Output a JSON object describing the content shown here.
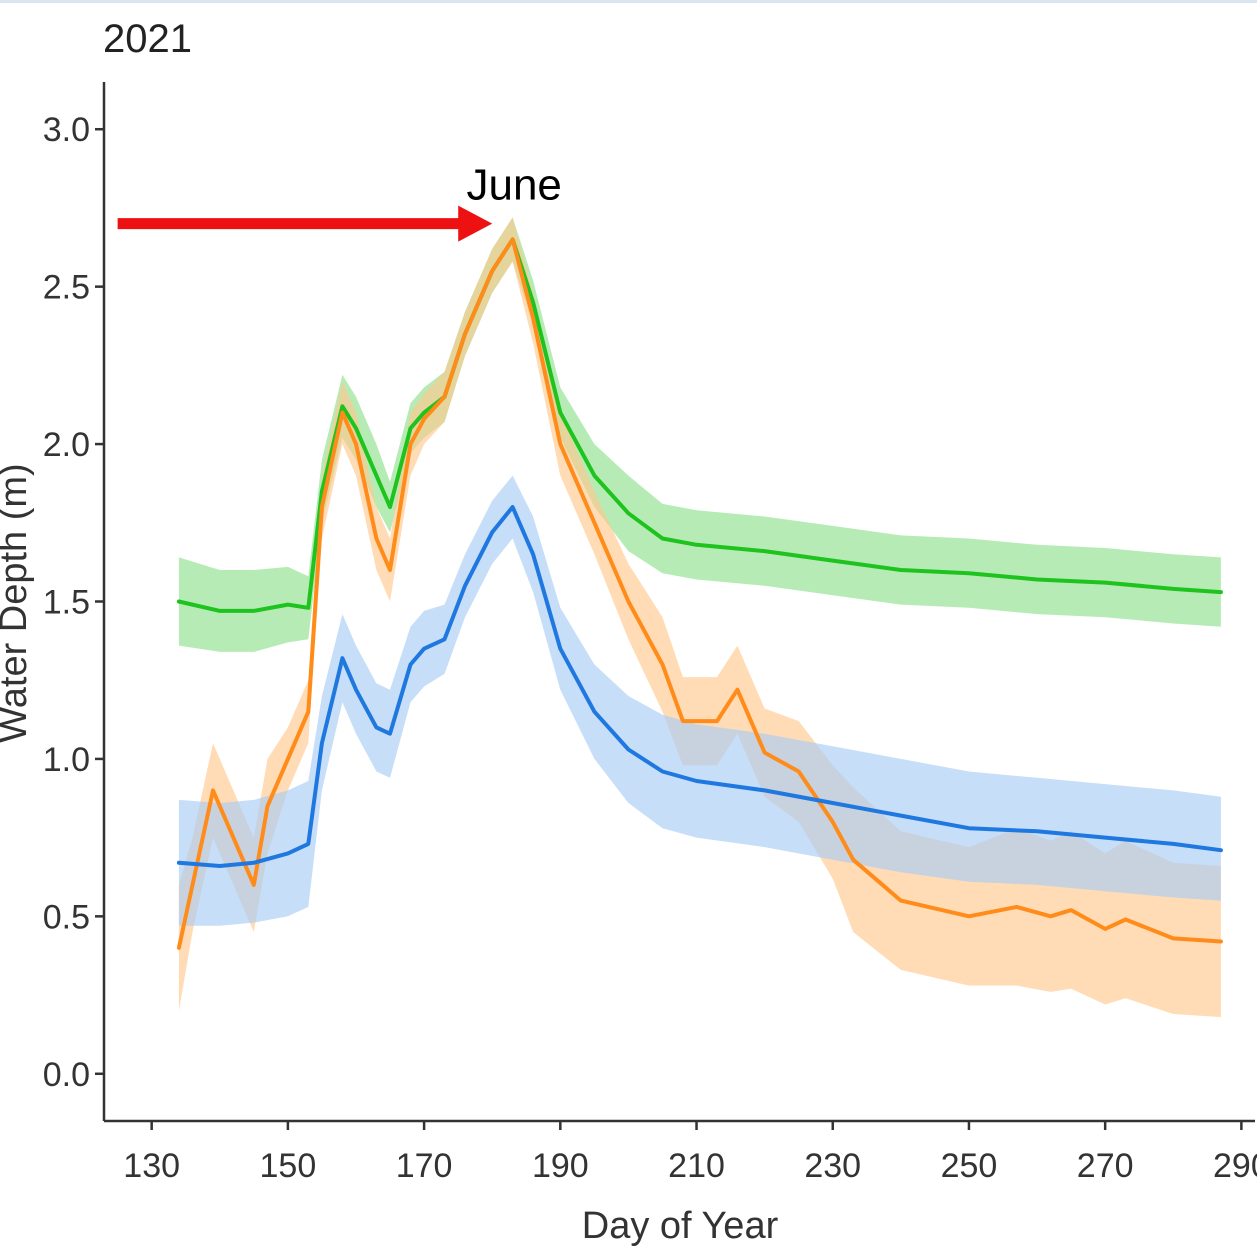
{
  "chart_data": {
    "type": "line",
    "title": "2021",
    "xlabel": "Day of Year",
    "ylabel": "Water Depth (m)",
    "xlim": [
      123,
      292
    ],
    "ylim": [
      -0.15,
      3.15
    ],
    "xticks": [
      130,
      150,
      170,
      190,
      210,
      230,
      250,
      270,
      290
    ],
    "yticks": [
      0.0,
      0.5,
      1.0,
      1.5,
      2.0,
      2.5,
      3.0
    ],
    "ytick_labels": [
      "0.0",
      "0.5",
      "1.0",
      "1.5",
      "2.0",
      "2.5",
      "3.0"
    ],
    "grid": false,
    "legend": "none",
    "annotation": {
      "text": "June",
      "arrow_from_x": 125,
      "arrow_to_x": 180,
      "arrow_y": 2.7,
      "color": "#ee1111"
    },
    "series": [
      {
        "color": "#1ec31e",
        "band_color": "#8fe08f",
        "x": [
          134,
          140,
          145,
          150,
          153,
          155,
          158,
          160,
          163,
          165,
          168,
          170,
          173,
          176,
          180,
          183,
          186,
          190,
          195,
          200,
          205,
          210,
          220,
          230,
          240,
          250,
          260,
          270,
          280,
          287
        ],
        "y": [
          1.5,
          1.47,
          1.47,
          1.49,
          1.48,
          1.85,
          2.12,
          2.05,
          1.9,
          1.8,
          2.05,
          2.1,
          2.15,
          2.35,
          2.55,
          2.65,
          2.45,
          2.1,
          1.9,
          1.78,
          1.7,
          1.68,
          1.66,
          1.63,
          1.6,
          1.59,
          1.57,
          1.56,
          1.54,
          1.53
        ],
        "lower": [
          1.36,
          1.34,
          1.34,
          1.37,
          1.38,
          1.75,
          2.02,
          1.95,
          1.8,
          1.72,
          1.97,
          2.02,
          2.07,
          2.28,
          2.48,
          2.58,
          2.38,
          2.02,
          1.8,
          1.66,
          1.59,
          1.57,
          1.55,
          1.52,
          1.49,
          1.48,
          1.46,
          1.45,
          1.43,
          1.42
        ],
        "upper": [
          1.64,
          1.6,
          1.6,
          1.61,
          1.58,
          1.95,
          2.22,
          2.15,
          2.0,
          1.88,
          2.13,
          2.18,
          2.23,
          2.42,
          2.62,
          2.72,
          2.52,
          2.18,
          2.0,
          1.9,
          1.81,
          1.79,
          1.77,
          1.74,
          1.71,
          1.7,
          1.68,
          1.67,
          1.65,
          1.64
        ]
      },
      {
        "color": "#ff8c1a",
        "band_color": "#ffc98f",
        "x": [
          134,
          136,
          139,
          141,
          143,
          145,
          147,
          150,
          153,
          155,
          158,
          160,
          163,
          165,
          168,
          170,
          173,
          176,
          180,
          183,
          186,
          190,
          195,
          200,
          205,
          208,
          213,
          216,
          220,
          225,
          230,
          233,
          240,
          250,
          257,
          262,
          265,
          270,
          273,
          280,
          287
        ],
        "y": [
          0.4,
          0.6,
          0.9,
          0.8,
          0.7,
          0.6,
          0.85,
          1.0,
          1.15,
          1.8,
          2.1,
          2.0,
          1.7,
          1.6,
          2.0,
          2.08,
          2.15,
          2.35,
          2.55,
          2.65,
          2.4,
          2.0,
          1.75,
          1.5,
          1.3,
          1.12,
          1.12,
          1.22,
          1.02,
          0.96,
          0.8,
          0.68,
          0.55,
          0.5,
          0.53,
          0.5,
          0.52,
          0.46,
          0.49,
          0.43,
          0.42
        ],
        "lower": [
          0.2,
          0.45,
          0.75,
          0.65,
          0.55,
          0.45,
          0.7,
          0.9,
          1.05,
          1.7,
          2.0,
          1.9,
          1.6,
          1.5,
          1.9,
          2.0,
          2.07,
          2.28,
          2.48,
          2.58,
          2.32,
          1.9,
          1.65,
          1.38,
          1.15,
          0.98,
          0.98,
          1.08,
          0.88,
          0.8,
          0.62,
          0.45,
          0.33,
          0.28,
          0.28,
          0.26,
          0.27,
          0.22,
          0.24,
          0.19,
          0.18
        ],
        "upper": [
          0.6,
          0.75,
          1.05,
          0.95,
          0.85,
          0.75,
          1.0,
          1.1,
          1.25,
          1.9,
          2.2,
          2.1,
          1.8,
          1.7,
          2.1,
          2.16,
          2.23,
          2.42,
          2.62,
          2.72,
          2.48,
          2.1,
          1.85,
          1.62,
          1.45,
          1.26,
          1.26,
          1.36,
          1.16,
          1.12,
          0.98,
          0.91,
          0.77,
          0.72,
          0.78,
          0.74,
          0.77,
          0.7,
          0.74,
          0.67,
          0.66
        ]
      },
      {
        "color": "#1f78e0",
        "band_color": "#a9ccf5",
        "x": [
          134,
          140,
          145,
          150,
          153,
          155,
          158,
          160,
          163,
          165,
          168,
          170,
          173,
          176,
          180,
          183,
          186,
          190,
          195,
          200,
          205,
          210,
          220,
          230,
          240,
          250,
          260,
          270,
          280,
          287
        ],
        "y": [
          0.67,
          0.66,
          0.67,
          0.7,
          0.73,
          1.05,
          1.32,
          1.22,
          1.1,
          1.08,
          1.3,
          1.35,
          1.38,
          1.55,
          1.72,
          1.8,
          1.65,
          1.35,
          1.15,
          1.03,
          0.96,
          0.93,
          0.9,
          0.86,
          0.82,
          0.78,
          0.77,
          0.75,
          0.73,
          0.71
        ],
        "lower": [
          0.47,
          0.47,
          0.48,
          0.5,
          0.53,
          0.9,
          1.18,
          1.08,
          0.96,
          0.94,
          1.18,
          1.23,
          1.27,
          1.45,
          1.62,
          1.7,
          1.53,
          1.22,
          1.0,
          0.86,
          0.78,
          0.75,
          0.72,
          0.68,
          0.64,
          0.61,
          0.6,
          0.58,
          0.56,
          0.55
        ],
        "upper": [
          0.87,
          0.86,
          0.87,
          0.9,
          0.93,
          1.2,
          1.46,
          1.36,
          1.24,
          1.22,
          1.42,
          1.47,
          1.49,
          1.65,
          1.82,
          1.9,
          1.77,
          1.48,
          1.3,
          1.2,
          1.14,
          1.11,
          1.08,
          1.04,
          1.0,
          0.96,
          0.94,
          0.92,
          0.9,
          0.88
        ]
      }
    ]
  }
}
